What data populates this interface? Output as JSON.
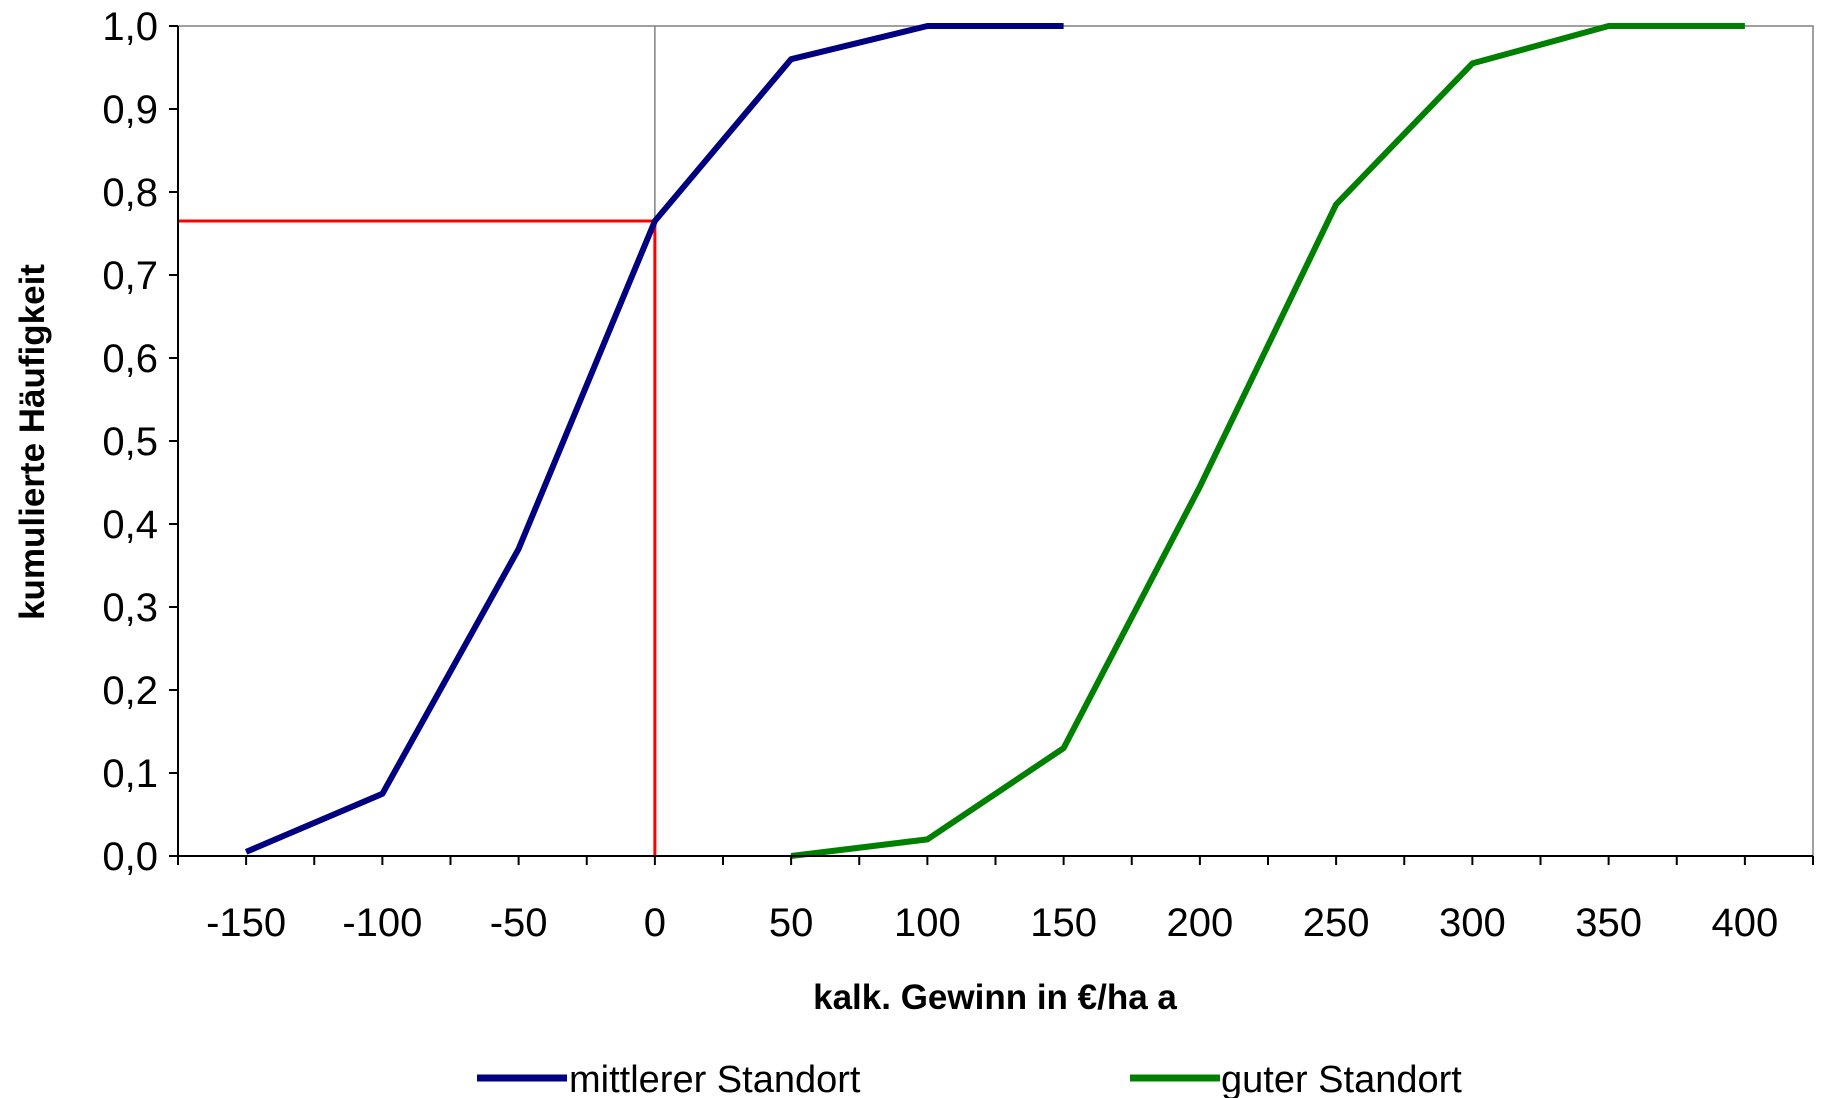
{
  "chart_data": {
    "type": "line",
    "xlabel": "kalk. Gewinn in €/ha a",
    "ylabel": "kumulierte Häufigkeit",
    "xlim": [
      -175,
      425
    ],
    "ylim": [
      0,
      1
    ],
    "x_ticks": [
      -150,
      -100,
      -50,
      0,
      50,
      100,
      150,
      200,
      250,
      300,
      350,
      400
    ],
    "x_tick_labels": [
      "-150",
      "-100",
      "-50",
      "0",
      "50",
      "100",
      "150",
      "200",
      "250",
      "300",
      "350",
      "400"
    ],
    "y_ticks": [
      0,
      0.1,
      0.2,
      0.3,
      0.4,
      0.5,
      0.6,
      0.7,
      0.8,
      0.9,
      1.0
    ],
    "y_tick_labels": [
      "0,0",
      "0,1",
      "0,2",
      "0,3",
      "0,4",
      "0,5",
      "0,6",
      "0,7",
      "0,8",
      "0,9",
      "1,0"
    ],
    "grid": false,
    "legend_position": "bottom",
    "series": [
      {
        "name": "mittlerer Standort",
        "color": "#000080",
        "points": [
          [
            -150,
            0.005
          ],
          [
            -100,
            0.075
          ],
          [
            -50,
            0.37
          ],
          [
            0,
            0.765
          ],
          [
            50,
            0.96
          ],
          [
            100,
            1.0
          ],
          [
            150,
            1.0
          ]
        ]
      },
      {
        "name": "guter Standort",
        "color": "#008000",
        "points": [
          [
            50,
            0.0
          ],
          [
            100,
            0.02
          ],
          [
            150,
            0.13
          ],
          [
            200,
            0.445
          ],
          [
            250,
            0.785
          ],
          [
            300,
            0.955
          ],
          [
            350,
            1.0
          ],
          [
            400,
            1.0
          ]
        ]
      }
    ],
    "reference_lines": {
      "color": "#ff0000",
      "x": 0,
      "y": 0.765
    },
    "zero_line_color": "#808080"
  }
}
